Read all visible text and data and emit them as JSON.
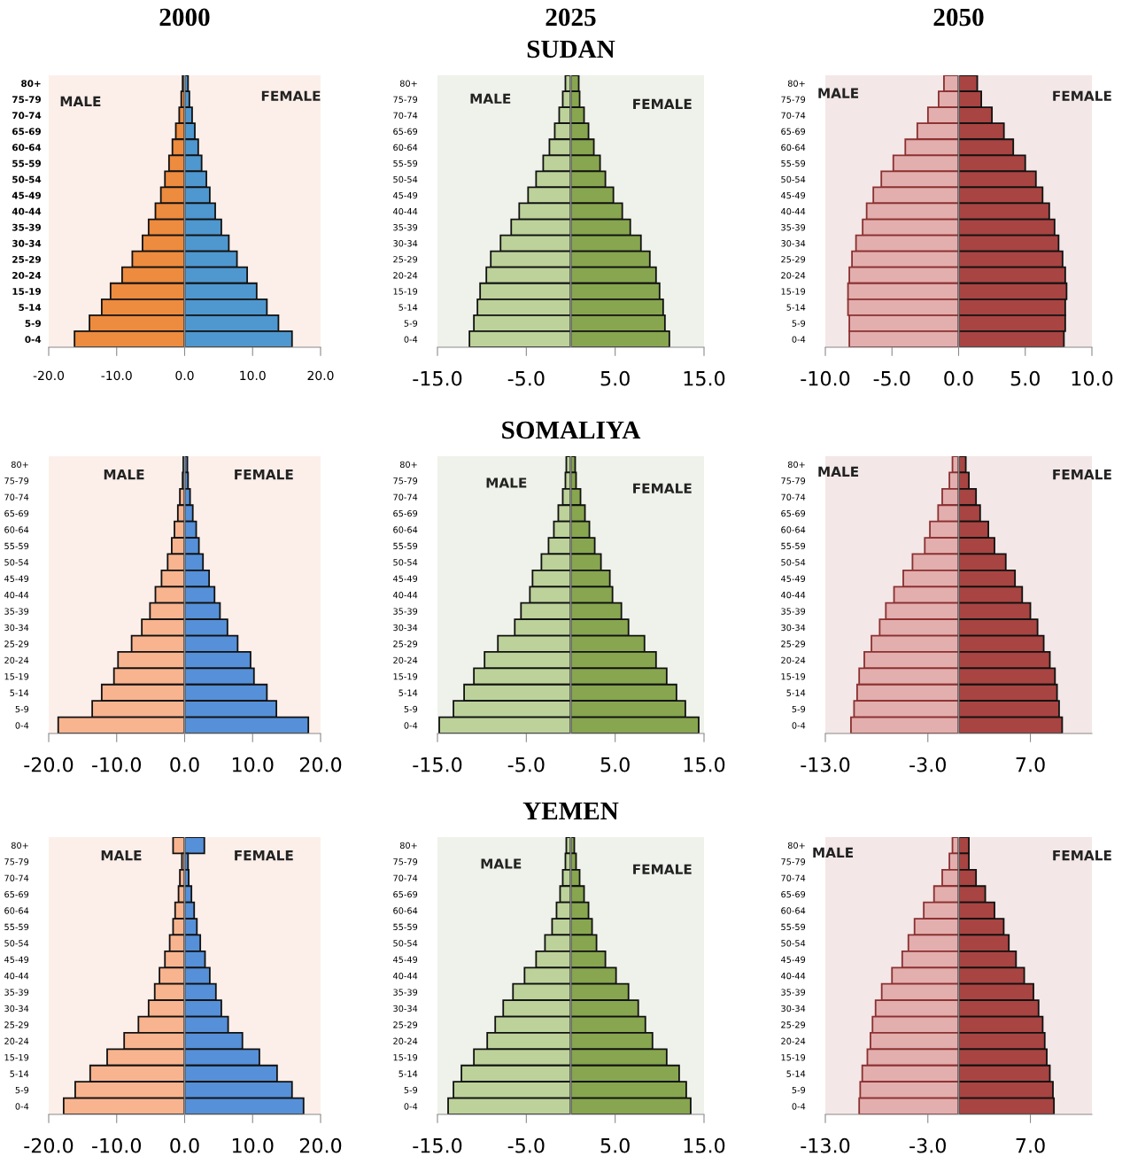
{
  "chart_data": [
    {
      "type": "bar",
      "orientation": "horizontal",
      "stacked": true,
      "title": "2000",
      "annotations": [
        "MALE",
        "FEMALE"
      ],
      "categories": [
        "80+",
        "75-79",
        "70-74",
        "65-69",
        "60-64",
        "55-59",
        "50-54",
        "45-49",
        "40-44",
        "35-39",
        "30-34",
        "25-29",
        "20-24",
        "15-19",
        "5-14",
        "5-9",
        "0-4"
      ],
      "xlim": [
        -20,
        20
      ],
      "xticks": [
        {
          "value": -20,
          "label": "-20.0"
        },
        {
          "value": -10,
          "label": "-10.0"
        },
        {
          "value": 0,
          "label": "0.0"
        },
        {
          "value": 10,
          "label": "10.0"
        },
        {
          "value": 20,
          "label": "20.0"
        }
      ],
      "series": [
        {
          "color": "#ed8b3f",
          "values": [
            -0.3,
            -0.5,
            -0.8,
            -1.3,
            -1.8,
            -2.3,
            -2.9,
            -3.5,
            -4.3,
            -5.3,
            -6.2,
            -7.7,
            -9.2,
            -10.9,
            -12.2,
            -14.0,
            -16.2
          ]
        },
        {
          "color": "#4f97cf",
          "values": [
            0.5,
            0.7,
            1.1,
            1.5,
            2.0,
            2.5,
            3.2,
            3.7,
            4.5,
            5.4,
            6.5,
            7.7,
            9.2,
            10.6,
            12.1,
            13.8,
            15.8
          ]
        }
      ]
    },
    {
      "type": "bar",
      "orientation": "horizontal",
      "stacked": true,
      "title": "2025",
      "subtitle": "SUDAN",
      "annotations": [
        "MALE",
        "FEMALE"
      ],
      "categories": [
        "80+",
        "75-79",
        "70-74",
        "65-69",
        "60-64",
        "55-59",
        "50-54",
        "45-49",
        "40-44",
        "35-39",
        "30-34",
        "25-29",
        "20-24",
        "15-19",
        "5-14",
        "5-9",
        "0-4"
      ],
      "xlim": [
        -15,
        15
      ],
      "xticks": [
        {
          "value": -15,
          "label": "-15.0"
        },
        {
          "value": -5,
          "label": "-5.0"
        },
        {
          "value": 5,
          "label": "5.0"
        },
        {
          "value": 15,
          "label": "15.0"
        }
      ],
      "series": [
        {
          "color": "#bcd29a",
          "values": [
            -0.6,
            -0.9,
            -1.3,
            -1.8,
            -2.4,
            -3.1,
            -3.9,
            -4.8,
            -5.8,
            -6.7,
            -7.9,
            -9.0,
            -9.5,
            -10.2,
            -10.5,
            -10.9,
            -11.4
          ]
        },
        {
          "color": "#87a64f",
          "values": [
            0.9,
            1.0,
            1.5,
            2.0,
            2.6,
            3.3,
            3.9,
            4.8,
            5.8,
            6.7,
            7.9,
            8.9,
            9.6,
            10.0,
            10.4,
            10.6,
            11.1
          ]
        }
      ]
    },
    {
      "type": "bar",
      "orientation": "horizontal",
      "stacked": true,
      "title": "2050",
      "annotations": [
        "MALE",
        "FEMALE"
      ],
      "categories": [
        "80+",
        "75-79",
        "70-74",
        "65-69",
        "60-64",
        "55-59",
        "50-54",
        "45-49",
        "40-44",
        "35-39",
        "30-34",
        "25-29",
        "20-24",
        "15-19",
        "5-14",
        "5-9",
        "0-4"
      ],
      "xlim": [
        -10,
        10
      ],
      "xticks": [
        {
          "value": -10,
          "label": "-10.0"
        },
        {
          "value": -5,
          "label": "-5.0"
        },
        {
          "value": 0,
          "label": "0.0"
        },
        {
          "value": 5,
          "label": "5.0"
        },
        {
          "value": 10,
          "label": "10.0"
        }
      ],
      "series": [
        {
          "color": "#e3aeae",
          "values": [
            -1.1,
            -1.5,
            -2.3,
            -3.1,
            -4.0,
            -4.9,
            -5.8,
            -6.4,
            -6.9,
            -7.2,
            -7.7,
            -8.0,
            -8.2,
            -8.3,
            -8.3,
            -8.2,
            -8.2
          ]
        },
        {
          "color": "#a84442",
          "values": [
            1.4,
            1.7,
            2.5,
            3.4,
            4.1,
            5.0,
            5.8,
            6.3,
            6.8,
            7.2,
            7.5,
            7.8,
            8.0,
            8.1,
            8.0,
            8.0,
            7.9
          ]
        }
      ]
    },
    {
      "type": "bar",
      "orientation": "horizontal",
      "stacked": true,
      "annotations": [
        "MALE",
        "FEMALE"
      ],
      "categories": [
        "80+",
        "75-79",
        "70-74",
        "65-69",
        "60-64",
        "55-59",
        "50-54",
        "45-49",
        "40-44",
        "35-39",
        "30-34",
        "25-29",
        "20-24",
        "15-19",
        "5-14",
        "5-9",
        "0-4"
      ],
      "xlim": [
        -20,
        20
      ],
      "xticks": [
        {
          "value": -20,
          "label": "-20.0"
        },
        {
          "value": -10,
          "label": "-10.0"
        },
        {
          "value": 0,
          "label": "0.0"
        },
        {
          "value": 10,
          "label": "10.0"
        },
        {
          "value": 20,
          "label": "20.0"
        }
      ],
      "series": [
        {
          "color": "#f8b48f",
          "values": [
            -0.2,
            -0.3,
            -0.7,
            -1.0,
            -1.5,
            -1.9,
            -2.5,
            -3.4,
            -4.3,
            -5.1,
            -6.3,
            -7.8,
            -9.8,
            -10.4,
            -12.2,
            -13.6,
            -18.6
          ]
        },
        {
          "color": "#5690d8",
          "values": [
            0.4,
            0.5,
            0.8,
            1.2,
            1.7,
            2.1,
            2.7,
            3.6,
            4.4,
            5.2,
            6.3,
            7.8,
            9.7,
            10.2,
            12.1,
            13.5,
            18.2
          ]
        }
      ]
    },
    {
      "type": "bar",
      "orientation": "horizontal",
      "stacked": true,
      "title": "SOMALIYA",
      "annotations": [
        "MALE",
        "FEMALE"
      ],
      "categories": [
        "80+",
        "75-79",
        "70-74",
        "65-69",
        "60-64",
        "55-59",
        "50-54",
        "45-49",
        "40-44",
        "35-39",
        "30-34",
        "25-29",
        "20-24",
        "15-19",
        "5-14",
        "5-9",
        "0-4"
      ],
      "xlim": [
        -15,
        15
      ],
      "xticks": [
        {
          "value": -15,
          "label": "-15.0"
        },
        {
          "value": -5,
          "label": "-5.0"
        },
        {
          "value": 5,
          "label": "5.0"
        },
        {
          "value": 15,
          "label": "15.0"
        }
      ],
      "series": [
        {
          "color": "#bcd29a",
          "values": [
            -0.5,
            -0.6,
            -0.9,
            -1.4,
            -1.9,
            -2.5,
            -3.3,
            -4.3,
            -4.6,
            -5.6,
            -6.3,
            -8.2,
            -9.7,
            -10.9,
            -12.0,
            -13.2,
            -14.8
          ]
        },
        {
          "color": "#87a64f",
          "values": [
            0.5,
            0.6,
            1.1,
            1.6,
            2.1,
            2.7,
            3.4,
            4.4,
            4.7,
            5.7,
            6.5,
            8.3,
            9.6,
            10.8,
            11.9,
            12.9,
            14.4
          ]
        }
      ]
    },
    {
      "type": "bar",
      "orientation": "horizontal",
      "stacked": true,
      "annotations": [
        "MALE",
        "FEMALE"
      ],
      "categories": [
        "80+",
        "75-79",
        "70-74",
        "65-69",
        "60-64",
        "55-59",
        "50-54",
        "45-49",
        "40-44",
        "35-39",
        "30-34",
        "25-29",
        "20-24",
        "15-19",
        "5-14",
        "5-9",
        "0-4"
      ],
      "xlim": [
        -13,
        13
      ],
      "xticks": [
        {
          "value": -13,
          "label": "-13.0"
        },
        {
          "value": -3,
          "label": "-3.0"
        },
        {
          "value": 7,
          "label": "7.0"
        }
      ],
      "series": [
        {
          "color": "#e3aeae",
          "values": [
            -0.6,
            -0.9,
            -1.6,
            -2.0,
            -2.8,
            -3.3,
            -4.5,
            -5.4,
            -6.3,
            -7.1,
            -7.7,
            -8.5,
            -9.2,
            -9.7,
            -9.9,
            -10.2,
            -10.5
          ]
        },
        {
          "color": "#a84442",
          "values": [
            0.7,
            1.0,
            1.7,
            2.1,
            2.9,
            3.5,
            4.6,
            5.5,
            6.2,
            7.0,
            7.7,
            8.3,
            8.9,
            9.4,
            9.6,
            9.8,
            10.1
          ]
        }
      ]
    },
    {
      "type": "bar",
      "orientation": "horizontal",
      "stacked": true,
      "annotations": [
        "MALE",
        "FEMALE"
      ],
      "categories": [
        "80+",
        "75-79",
        "70-74",
        "65-69",
        "60-64",
        "55-59",
        "50-54",
        "45-49",
        "40-44",
        "35-39",
        "30-34",
        "25-29",
        "20-24",
        "15-19",
        "5-14",
        "5-9",
        "0-4"
      ],
      "xlim": [
        -20,
        20
      ],
      "xticks": [
        {
          "value": -20,
          "label": "-20.0"
        },
        {
          "value": -10,
          "label": "-10.0"
        },
        {
          "value": 0,
          "label": "0.0"
        },
        {
          "value": 10,
          "label": "10.0"
        },
        {
          "value": 20,
          "label": "20.0"
        }
      ],
      "series": [
        {
          "color": "#f8b48f",
          "values": [
            -1.7,
            -0.4,
            -0.7,
            -0.9,
            -1.4,
            -1.7,
            -2.2,
            -2.9,
            -3.7,
            -4.4,
            -5.3,
            -6.8,
            -8.9,
            -11.4,
            -13.9,
            -16.1,
            -17.8
          ]
        },
        {
          "color": "#5690d8",
          "values": [
            2.9,
            0.5,
            0.6,
            1.0,
            1.4,
            1.8,
            2.3,
            3.0,
            3.7,
            4.6,
            5.4,
            6.4,
            8.5,
            11.0,
            13.6,
            15.8,
            17.5
          ]
        }
      ]
    },
    {
      "type": "bar",
      "orientation": "horizontal",
      "stacked": true,
      "title": "YEMEN",
      "annotations": [
        "MALE",
        "FEMALE"
      ],
      "categories": [
        "80+",
        "75-79",
        "70-74",
        "65-69",
        "60-64",
        "55-59",
        "50-54",
        "45-49",
        "40-44",
        "35-39",
        "30-34",
        "25-29",
        "20-24",
        "15-19",
        "5-14",
        "5-9",
        "0-4"
      ],
      "xlim": [
        -15,
        15
      ],
      "xticks": [
        {
          "value": -15,
          "label": "-15.0"
        },
        {
          "value": -5,
          "label": "-5.0"
        },
        {
          "value": 5,
          "label": "5.0"
        },
        {
          "value": 15,
          "label": "15.0"
        }
      ],
      "series": [
        {
          "color": "#bcd29a",
          "values": [
            -0.5,
            -0.6,
            -0.9,
            -1.2,
            -1.6,
            -2.1,
            -2.9,
            -3.9,
            -5.2,
            -6.5,
            -7.6,
            -8.5,
            -9.4,
            -10.9,
            -12.3,
            -13.2,
            -13.8
          ]
        },
        {
          "color": "#87a64f",
          "values": [
            0.4,
            0.6,
            1.0,
            1.5,
            2.0,
            2.4,
            2.9,
            3.9,
            5.1,
            6.5,
            7.6,
            8.4,
            9.2,
            10.8,
            12.2,
            13.0,
            13.5
          ]
        }
      ]
    },
    {
      "type": "bar",
      "orientation": "horizontal",
      "stacked": true,
      "annotations": [
        "MALE",
        "FEMALE"
      ],
      "categories": [
        "80+",
        "75-79",
        "70-74",
        "65-69",
        "60-64",
        "55-59",
        "50-54",
        "45-49",
        "40-44",
        "35-39",
        "30-34",
        "25-29",
        "20-24",
        "15-19",
        "5-14",
        "5-9",
        "0-4"
      ],
      "xlim": [
        -13,
        13
      ],
      "xticks": [
        {
          "value": -13,
          "label": "-13.0"
        },
        {
          "value": -3,
          "label": "-3.0"
        },
        {
          "value": 7,
          "label": "7.0"
        }
      ],
      "series": [
        {
          "color": "#e3aeae",
          "values": [
            -0.6,
            -0.9,
            -1.6,
            -2.4,
            -3.4,
            -4.3,
            -4.9,
            -5.5,
            -6.5,
            -7.5,
            -8.1,
            -8.4,
            -8.6,
            -8.9,
            -9.4,
            -9.6,
            -9.7
          ]
        },
        {
          "color": "#a84442",
          "values": [
            1.0,
            1.0,
            1.7,
            2.6,
            3.5,
            4.4,
            4.9,
            5.6,
            6.4,
            7.3,
            7.8,
            8.2,
            8.4,
            8.6,
            8.9,
            9.2,
            9.3
          ]
        }
      ]
    }
  ]
}
